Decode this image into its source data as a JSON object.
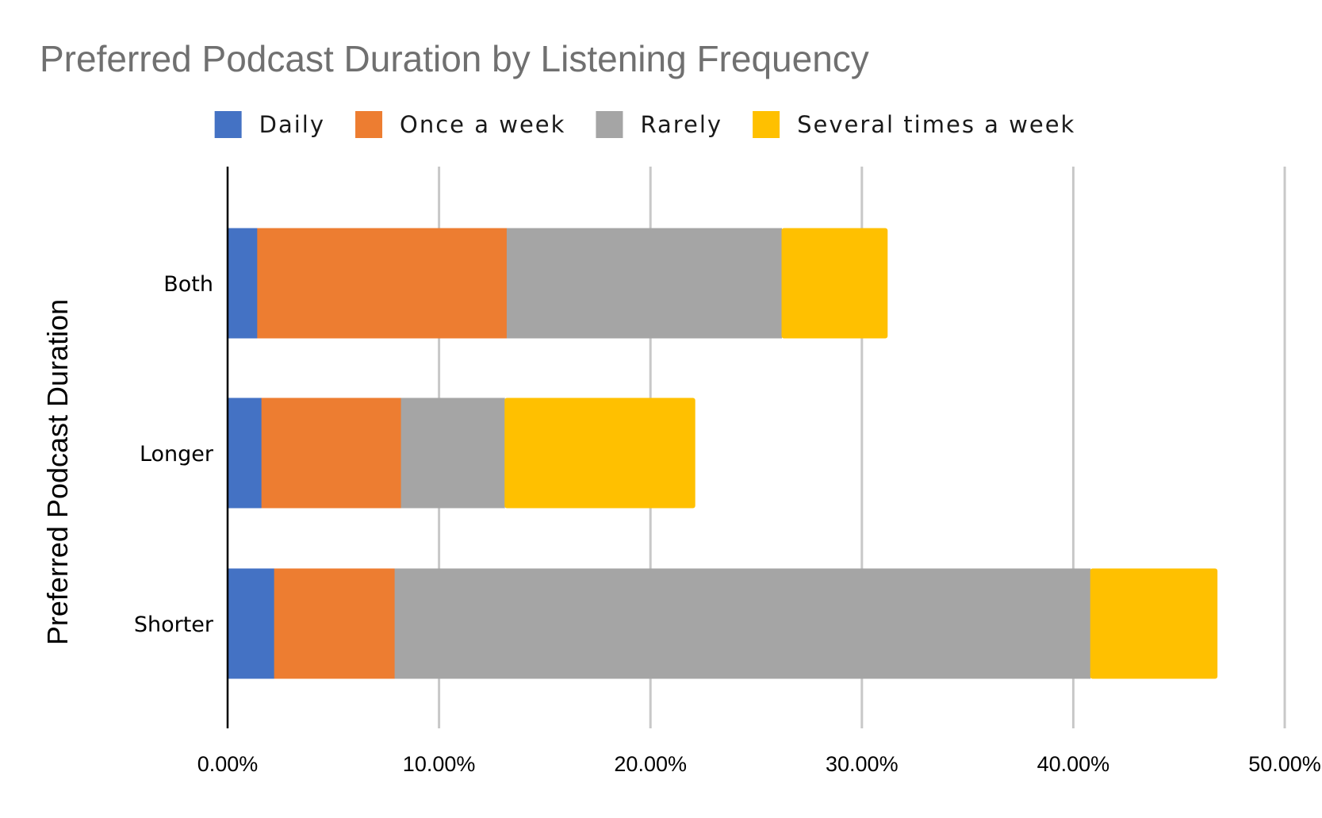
{
  "chart_data": {
    "type": "bar",
    "orientation": "horizontal",
    "stacked": true,
    "title": "Preferred Podcast Duration by Listening Frequency",
    "ylabel": "Preferred Podcast Duration",
    "xlabel": "",
    "categories": [
      "Both",
      "Longer",
      "Shorter"
    ],
    "series": [
      {
        "name": "Daily",
        "color": "#4472c4",
        "values": [
          1.4,
          1.6,
          2.2
        ]
      },
      {
        "name": "Once a week",
        "color": "#ed7d31",
        "values": [
          11.8,
          6.6,
          5.7
        ]
      },
      {
        "name": "Rarely",
        "color": "#a5a5a5",
        "values": [
          13.0,
          4.9,
          32.9
        ]
      },
      {
        "name": "Several times a week",
        "color": "#ffc000",
        "values": [
          5.0,
          9.0,
          6.0
        ]
      }
    ],
    "xlim": [
      0,
      50
    ],
    "xticks": [
      0,
      10,
      20,
      30,
      40,
      50
    ],
    "xtick_labels": [
      "0.00%",
      "10.00%",
      "20.00%",
      "30.00%",
      "40.00%",
      "50.00%"
    ],
    "grid": true,
    "legend_position": "top"
  }
}
